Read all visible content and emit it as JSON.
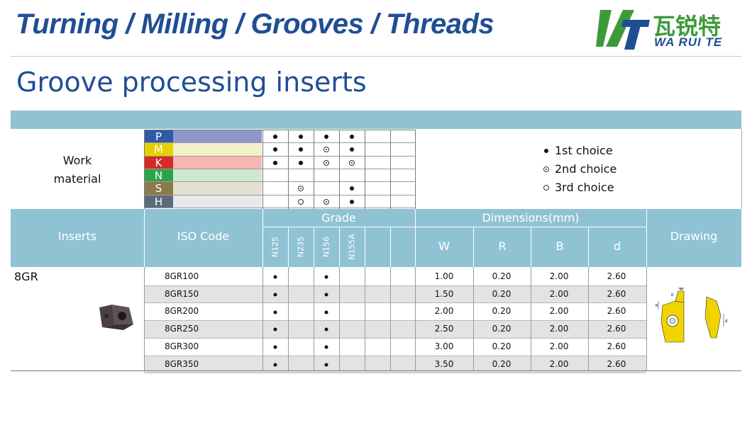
{
  "header": {
    "title": "Turning / Milling / Grooves / Threads",
    "logo_cn": "瓦锐特",
    "logo_en": "WA RUI TE"
  },
  "page_title": "Groove processing inserts",
  "work_material": {
    "label_line1": "Work",
    "label_line2": "material",
    "materials": [
      {
        "letter": "P",
        "letter_color": "#2f5aa8",
        "bar_color": "#8e97cc",
        "marks": [
          "1st",
          "1st",
          "1st",
          "1st",
          "",
          ""
        ]
      },
      {
        "letter": "M",
        "letter_color": "#e6d000",
        "bar_color": "#f3efc9",
        "marks": [
          "1st",
          "1st",
          "2nd",
          "1st",
          "",
          ""
        ]
      },
      {
        "letter": "K",
        "letter_color": "#d62a24",
        "bar_color": "#f4b7b3",
        "marks": [
          "1st",
          "1st",
          "2nd",
          "2nd",
          "",
          ""
        ]
      },
      {
        "letter": "N",
        "letter_color": "#2ca44a",
        "bar_color": "#cfe6cf",
        "marks": [
          "",
          "",
          "",
          "",
          "",
          ""
        ]
      },
      {
        "letter": "S",
        "letter_color": "#8b7a4a",
        "bar_color": "#e3e0d3",
        "marks": [
          "",
          "2nd",
          "",
          "1st",
          "",
          ""
        ]
      },
      {
        "letter": "H",
        "letter_color": "#5c6b7a",
        "bar_color": "#e9e9e9",
        "marks": [
          "",
          "3rd",
          "2nd",
          "1st",
          "",
          ""
        ]
      }
    ]
  },
  "legend": {
    "first": "1st choice",
    "second": "2nd choice",
    "third": "3rd choice"
  },
  "table": {
    "col_inserts": "Inserts",
    "col_iso": "ISO Code",
    "col_grade": "Grade",
    "col_dimensions": "Dimensions(mm)",
    "col_drawing": "Drawing",
    "grades": [
      "N125",
      "N235",
      "N156",
      "N155A",
      "",
      ""
    ],
    "dims": [
      "W",
      "R",
      "B",
      "d"
    ],
    "insert_name": "8GR",
    "rows": [
      {
        "iso": "8GR100",
        "grade": [
          true,
          false,
          true,
          false,
          false,
          false
        ],
        "W": "1.00",
        "R": "0.20",
        "B": "2.00",
        "d": "2.60"
      },
      {
        "iso": "8GR150",
        "grade": [
          true,
          false,
          true,
          false,
          false,
          false
        ],
        "W": "1.50",
        "R": "0.20",
        "B": "2.00",
        "d": "2.60"
      },
      {
        "iso": "8GR200",
        "grade": [
          true,
          false,
          true,
          false,
          false,
          false
        ],
        "W": "2.00",
        "R": "0.20",
        "B": "2.00",
        "d": "2.60"
      },
      {
        "iso": "8GR250",
        "grade": [
          true,
          false,
          true,
          false,
          false,
          false
        ],
        "W": "2.50",
        "R": "0.20",
        "B": "2.00",
        "d": "2.60"
      },
      {
        "iso": "8GR300",
        "grade": [
          true,
          false,
          true,
          false,
          false,
          false
        ],
        "W": "3.00",
        "R": "0.20",
        "B": "2.00",
        "d": "2.60"
      },
      {
        "iso": "8GR350",
        "grade": [
          true,
          false,
          true,
          false,
          false,
          false
        ],
        "W": "3.50",
        "R": "0.20",
        "B": "2.00",
        "d": "2.60"
      }
    ],
    "drawing_labels": {
      "w": "W",
      "r": "R",
      "b": "B",
      "d": "d"
    }
  },
  "colors": {
    "header_blue": "#1f4e94",
    "band_blue": "#8fc3d4",
    "row_shade": "#e3e3e3"
  }
}
